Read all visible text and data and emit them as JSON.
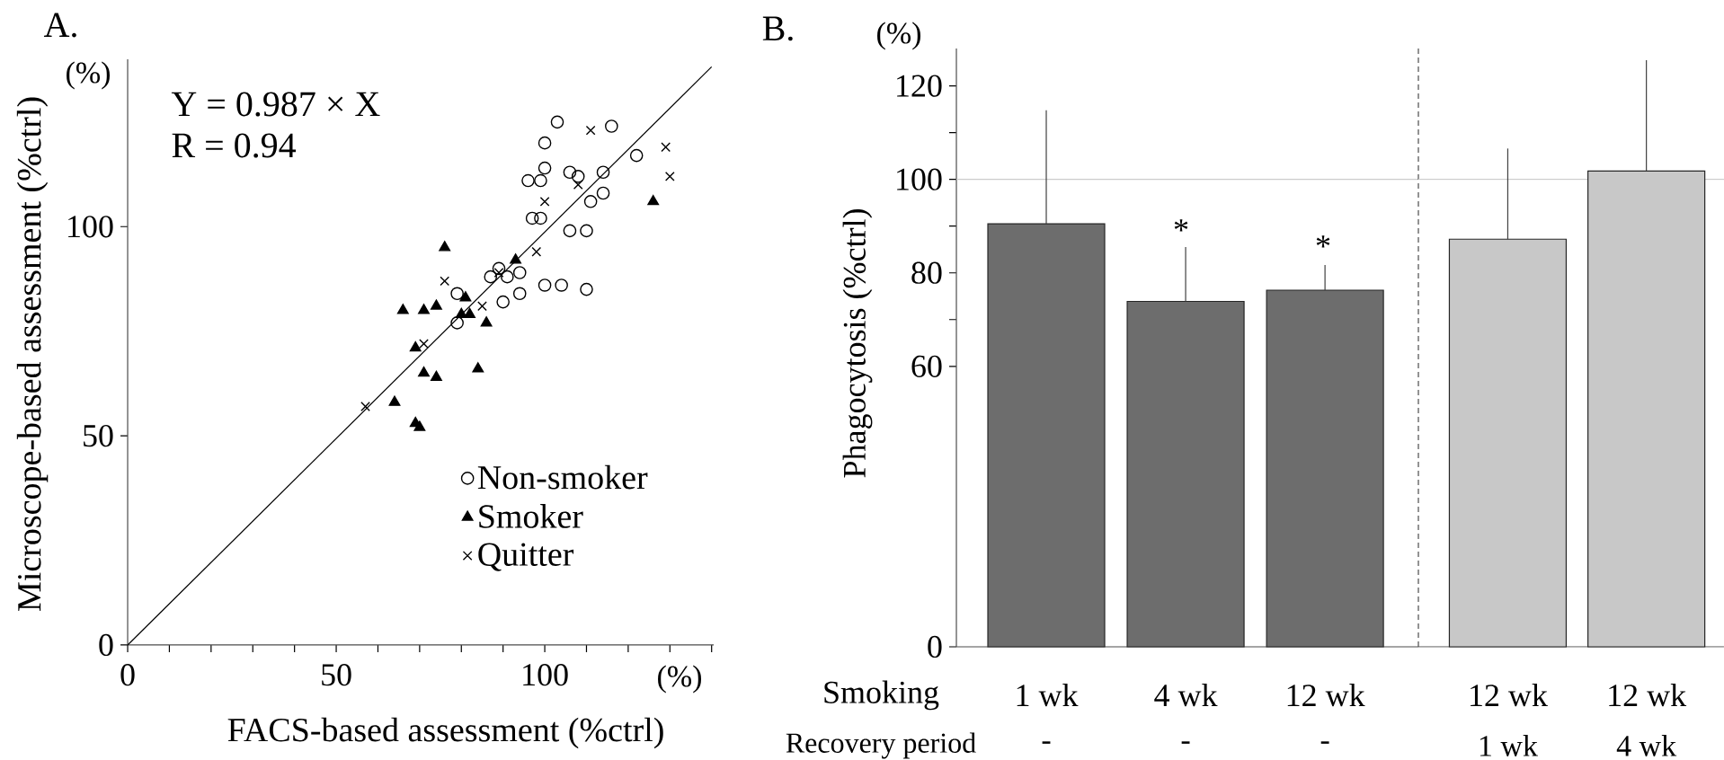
{
  "chart_data": [
    {
      "type": "scatter",
      "title": "A.",
      "xlabel": "FACS-based assessment (%ctrl)",
      "ylabel": "Microscope-based assessment (%ctrl)",
      "xlim": [
        0,
        140.5
      ],
      "ylim": [
        0,
        140
      ],
      "xticks": [
        0,
        {
          "value": 10,
          "label": null
        },
        {
          "value": 20,
          "label": null
        },
        {
          "value": 30,
          "label": null
        },
        {
          "value": 40,
          "label": null
        },
        50,
        {
          "value": 60,
          "label": null
        },
        {
          "value": 70,
          "label": null
        },
        {
          "value": 80,
          "label": null
        },
        {
          "value": 90,
          "label": null
        },
        100,
        {
          "value": 110,
          "label": null
        },
        {
          "value": 120,
          "label": null
        },
        {
          "value": 130,
          "label": null
        },
        {
          "value": 140,
          "label": null
        }
      ],
      "yticks": [
        0,
        50,
        100
      ],
      "legend": "bottom right",
      "annotations": [
        "(%)",
        "(%)",
        "Y = 0.987 × X",
        "R = 0.94"
      ],
      "series": [
        {
          "name": "Non-smoker",
          "color": "#000000",
          "marker": "circle",
          "x": [
            103,
            116,
            100,
            100,
            122,
            96,
            99,
            106,
            108,
            114,
            114,
            111,
            97,
            99,
            106,
            110,
            89,
            87,
            91,
            94,
            94,
            90,
            79,
            79,
            100,
            104,
            110
          ],
          "values": [
            125,
            124,
            120,
            114,
            117,
            111,
            111,
            113,
            112,
            113,
            108,
            106,
            102,
            102,
            99,
            99,
            90,
            88,
            88,
            89,
            84,
            82,
            84,
            77,
            86,
            86,
            85
          ]
        },
        {
          "name": "Smoker",
          "color": "#000000",
          "marker": "triangle",
          "x": [
            76,
            93,
            126,
            66,
            71,
            74,
            81,
            80,
            82,
            86,
            69,
            71,
            74,
            84,
            64,
            69,
            70
          ],
          "values": [
            95,
            92,
            106,
            80,
            80,
            81,
            83,
            79,
            79,
            77,
            71,
            65,
            64,
            66,
            58,
            53,
            52
          ]
        },
        {
          "name": "Quitter",
          "color": "#000000",
          "marker": "cross",
          "x": [
            57,
            71,
            76,
            85,
            89,
            98,
            100,
            108,
            111,
            129,
            130
          ],
          "values": [
            57,
            72,
            87,
            81,
            89,
            94,
            106,
            110,
            123,
            119,
            112
          ]
        },
        {
          "type": "line",
          "color": "#000000",
          "x": [
            0,
            140
          ],
          "values": [
            0,
            138.2
          ]
        }
      ]
    },
    {
      "type": "bar",
      "title": "B.",
      "ylabel": "Phagocytosis (%ctrl)",
      "categories": [
        "1 wk",
        "4 wk",
        "12 wk"
      ],
      "values": [
        90.5,
        73.9,
        76.3
      ],
      "errors": [
        [
          90.5,
          114.8
        ],
        [
          73.9,
          85.5
        ],
        [
          76.3,
          81.7
        ]
      ],
      "color": "#6d6d6d",
      "ylim": [
        0,
        128
      ],
      "yticks": [
        0,
        60,
        {
          "value": 70,
          "label": null
        },
        80,
        {
          "value": 90,
          "label": null
        },
        100,
        {
          "value": 110,
          "label": null
        },
        120
      ],
      "ref_lines": [
        {
          "axis": "y",
          "value": 100,
          "color": "#cccccc"
        }
      ],
      "annotations": [
        "(%)",
        "Smoking",
        "Recovery period",
        "*",
        "*",
        "-",
        "-",
        "-"
      ]
    },
    {
      "type": "bar",
      "categories": [
        "12 wk",
        "12 wk"
      ],
      "values": [
        87.2,
        101.8
      ],
      "errors": [
        [
          87.2,
          106.6
        ],
        [
          101.8,
          125.5
        ]
      ],
      "color": "#c8c8c8",
      "ylim": [
        0,
        128
      ],
      "tick_labels": "x",
      "ref_lines": [
        {
          "axis": "y",
          "value": 100,
          "color": "#cccccc"
        }
      ],
      "annotations": [
        "1 wk",
        "4 wk"
      ]
    }
  ]
}
